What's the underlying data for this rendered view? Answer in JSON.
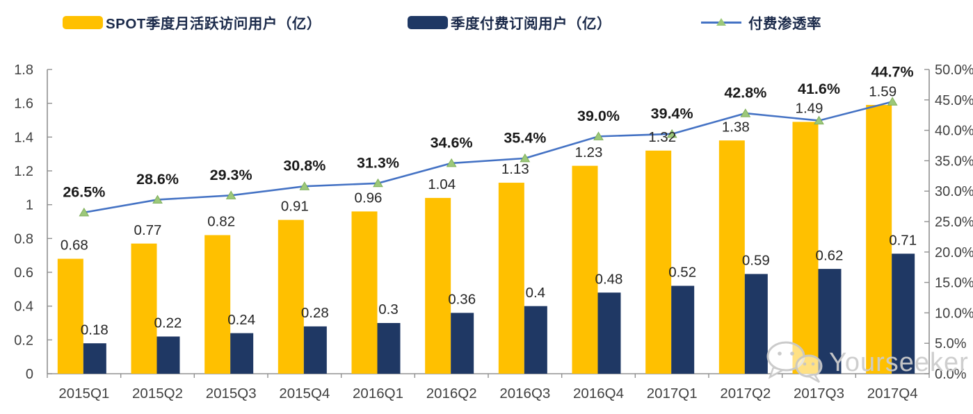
{
  "legend": {
    "items": [
      {
        "label": "SPOT季度月活跃访问用户（亿）",
        "swatch": "bar",
        "color": "#FFC000"
      },
      {
        "label": "季度付费订阅用户（亿）",
        "swatch": "bar",
        "color": "#1F3864"
      },
      {
        "label": "付费渗透率",
        "swatch": "line-marker",
        "color": "#4472C4",
        "marker_color": "#9CC87A"
      }
    ]
  },
  "chart_data": {
    "type": "bar+line",
    "categories": [
      "2015Q1",
      "2015Q2",
      "2015Q3",
      "2015Q4",
      "2016Q1",
      "2016Q2",
      "2016Q3",
      "2016Q4",
      "2017Q1",
      "2017Q2",
      "2017Q3",
      "2017Q4"
    ],
    "series": [
      {
        "name": "SPOT季度月活跃访问用户（亿）",
        "type": "bar",
        "axis": "left",
        "color": "#FFC000",
        "values": [
          0.68,
          0.77,
          0.82,
          0.91,
          0.96,
          1.04,
          1.13,
          1.23,
          1.32,
          1.38,
          1.49,
          1.59
        ]
      },
      {
        "name": "季度付费订阅用户（亿）",
        "type": "bar",
        "axis": "left",
        "color": "#1F3864",
        "values": [
          0.18,
          0.22,
          0.24,
          0.28,
          0.3,
          0.36,
          0.4,
          0.48,
          0.52,
          0.59,
          0.62,
          0.71
        ]
      },
      {
        "name": "付费渗透率",
        "type": "line",
        "axis": "right",
        "color": "#4472C4",
        "marker": "triangle",
        "marker_color": "#9CC87A",
        "marker_edge": "#7FAF5A",
        "values": [
          26.5,
          28.6,
          29.3,
          30.8,
          31.3,
          34.6,
          35.4,
          39.0,
          39.4,
          42.8,
          41.6,
          44.7
        ],
        "labels": [
          "26.5%",
          "28.6%",
          "29.3%",
          "30.8%",
          "31.3%",
          "34.6%",
          "35.4%",
          "39.0%",
          "39.4%",
          "42.8%",
          "41.6%",
          "44.7%"
        ]
      }
    ],
    "left_axis": {
      "ticks": [
        "0",
        "0.2",
        "0.4",
        "0.6",
        "0.8",
        "1",
        "1.2",
        "1.4",
        "1.6",
        "1.8"
      ],
      "range": [
        0,
        1.8
      ]
    },
    "right_axis": {
      "ticks": [
        "0.0%",
        "5.0%",
        "10.0%",
        "15.0%",
        "20.0%",
        "25.0%",
        "30.0%",
        "35.0%",
        "40.0%",
        "45.0%",
        "50.0%"
      ],
      "range": [
        0,
        50
      ]
    },
    "grid": false,
    "legend_position": "top",
    "title": "",
    "xlabel": "",
    "ylabel": ""
  },
  "watermark": {
    "text": "Yourseeker",
    "icon": "wechat-icon"
  },
  "colors": {
    "axis": "#909090",
    "tick_label": "#404040",
    "data_label": "#262626",
    "pct_label": "#1A1A1A",
    "legend_text": "#1B2A4A",
    "watermark": "#CCCCCC"
  }
}
